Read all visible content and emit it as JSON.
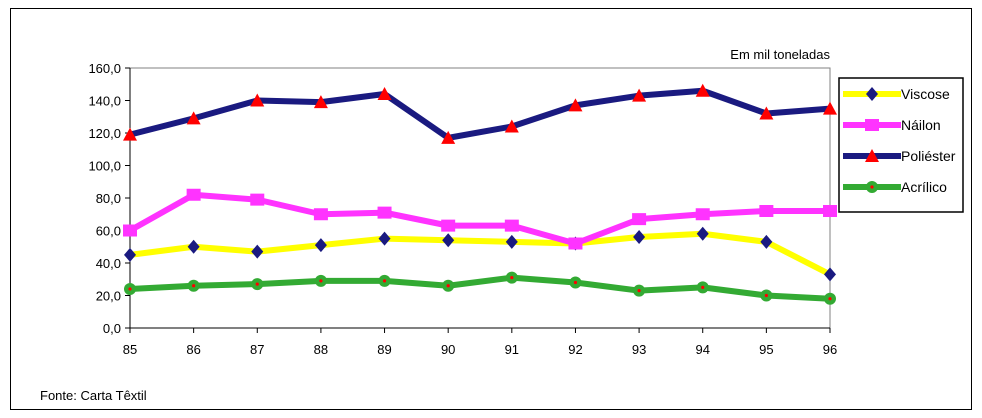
{
  "chart_data": {
    "type": "line",
    "title": "",
    "unit_note": "Em mil toneladas",
    "source": "Fonte: Carta Têxtil",
    "xlabel": "",
    "ylabel": "",
    "categories": [
      "85",
      "86",
      "87",
      "88",
      "89",
      "90",
      "91",
      "92",
      "93",
      "94",
      "95",
      "96"
    ],
    "ylim": [
      0,
      160
    ],
    "yticks": [
      "0,0",
      "20,0",
      "40,0",
      "60,0",
      "80,0",
      "100,0",
      "120,0",
      "140,0",
      "160,0"
    ],
    "grid": false,
    "legend_position": "right",
    "series": [
      {
        "name": "Viscose",
        "color": "#ffff00",
        "marker_color": "#1a1a80",
        "marker": "diamond",
        "values": [
          45,
          50,
          47,
          51,
          55,
          54,
          53,
          52,
          56,
          58,
          53,
          33
        ]
      },
      {
        "name": "Náilon",
        "color": "#ff33ff",
        "marker_color": "#ff33ff",
        "marker": "square",
        "values": [
          60,
          82,
          79,
          70,
          71,
          63,
          63,
          52,
          67,
          70,
          72,
          72
        ]
      },
      {
        "name": "Poliéster",
        "color": "#1a1a80",
        "marker_color": "#ff0000",
        "marker": "triangle",
        "values": [
          119,
          129,
          140,
          139,
          144,
          117,
          124,
          137,
          143,
          146,
          132,
          135
        ]
      },
      {
        "name": "Acrílico",
        "color": "#33aa33",
        "marker_color": "#33aa33",
        "marker": "circle",
        "values": [
          24,
          26,
          27,
          29,
          29,
          26,
          31,
          28,
          23,
          25,
          20,
          18
        ]
      }
    ]
  }
}
